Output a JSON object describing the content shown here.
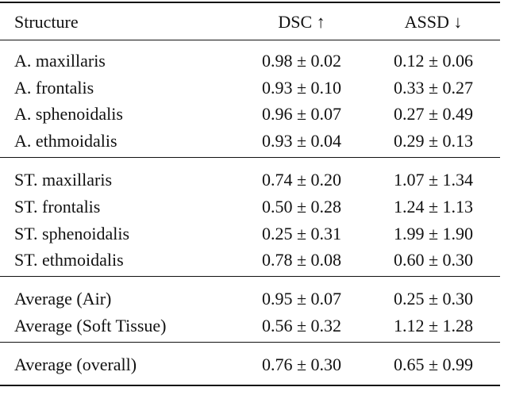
{
  "table": {
    "header": [
      "Structure",
      "DSC ↑",
      "ASSD ↓"
    ],
    "groups": [
      [
        [
          "A. maxillaris",
          "0.98 ± 0.02",
          "0.12 ± 0.06"
        ],
        [
          "A. frontalis",
          "0.93 ± 0.10",
          "0.33 ± 0.27"
        ],
        [
          "A. sphenoidalis",
          "0.96 ± 0.07",
          "0.27 ± 0.49"
        ],
        [
          "A. ethmoidalis",
          "0.93 ± 0.04",
          "0.29 ± 0.13"
        ]
      ],
      [
        [
          "ST. maxillaris",
          "0.74 ± 0.20",
          "1.07 ± 1.34"
        ],
        [
          "ST. frontalis",
          "0.50 ± 0.28",
          "1.24 ± 1.13"
        ],
        [
          "ST. sphenoidalis",
          "0.25 ± 0.31",
          "1.99 ± 1.90"
        ],
        [
          "ST. ethmoidalis",
          "0.78 ± 0.08",
          "0.60 ± 0.30"
        ]
      ],
      [
        [
          "Average (Air)",
          "0.95 ± 0.07",
          "0.25 ± 0.30"
        ],
        [
          "Average (Soft Tissue)",
          "0.56 ± 0.32",
          "1.12 ± 1.28"
        ]
      ],
      [
        [
          "Average (overall)",
          "0.76 ± 0.30",
          "0.65 ± 0.99"
        ]
      ]
    ]
  }
}
